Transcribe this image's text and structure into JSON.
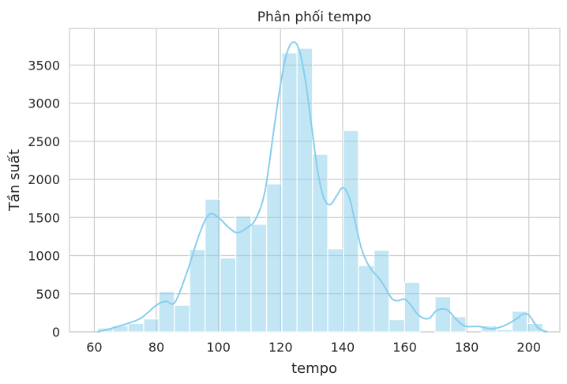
{
  "chart_data": {
    "type": "bar",
    "title": "Phân phối tempo",
    "xlabel": "tempo",
    "ylabel": "Tần suất",
    "xlim": [
      52,
      210
    ],
    "ylim": [
      0,
      3980
    ],
    "xticks": [
      60,
      80,
      100,
      120,
      140,
      160,
      180,
      200
    ],
    "yticks": [
      0,
      500,
      1000,
      1500,
      2000,
      2500,
      3000,
      3500
    ],
    "grid": true,
    "bar_color": "#87ceeb",
    "kde_color": "#87ceeb",
    "bin_width": 4.94,
    "bins": [
      {
        "x": [
          61.1,
          66.0
        ],
        "count": 50
      },
      {
        "x": [
          66.0,
          70.9
        ],
        "count": 80
      },
      {
        "x": [
          70.9,
          75.9
        ],
        "count": 110
      },
      {
        "x": [
          75.9,
          80.8
        ],
        "count": 170
      },
      {
        "x": [
          80.8,
          85.8
        ],
        "count": 530
      },
      {
        "x": [
          85.8,
          90.7
        ],
        "count": 350
      },
      {
        "x": [
          90.7,
          95.7
        ],
        "count": 1080
      },
      {
        "x": [
          95.7,
          100.6
        ],
        "count": 1740
      },
      {
        "x": [
          100.6,
          105.6
        ],
        "count": 970
      },
      {
        "x": [
          105.6,
          110.5
        ],
        "count": 1520
      },
      {
        "x": [
          110.5,
          115.5
        ],
        "count": 1410
      },
      {
        "x": [
          115.5,
          120.4
        ],
        "count": 1940
      },
      {
        "x": [
          120.4,
          125.3
        ],
        "count": 3660
      },
      {
        "x": [
          125.3,
          130.3
        ],
        "count": 3720
      },
      {
        "x": [
          130.3,
          135.2
        ],
        "count": 2330
      },
      {
        "x": [
          135.2,
          140.2
        ],
        "count": 1090
      },
      {
        "x": [
          140.2,
          145.1
        ],
        "count": 2640
      },
      {
        "x": [
          145.1,
          150.1
        ],
        "count": 870
      },
      {
        "x": [
          150.1,
          155.0
        ],
        "count": 1070
      },
      {
        "x": [
          155.0,
          160.0
        ],
        "count": 160
      },
      {
        "x": [
          160.0,
          164.9
        ],
        "count": 650
      },
      {
        "x": [
          164.9,
          169.8
        ],
        "count": 0
      },
      {
        "x": [
          169.8,
          174.8
        ],
        "count": 460
      },
      {
        "x": [
          174.8,
          179.7
        ],
        "count": 200
      },
      {
        "x": [
          179.7,
          184.7
        ],
        "count": 0
      },
      {
        "x": [
          184.7,
          189.6
        ],
        "count": 80
      },
      {
        "x": [
          189.6,
          194.6
        ],
        "count": 30
      },
      {
        "x": [
          194.6,
          199.5
        ],
        "count": 270
      },
      {
        "x": [
          199.5,
          204.5
        ],
        "count": 110
      }
    ],
    "kde": {
      "x": [
        61,
        65,
        70,
        75,
        80,
        83,
        86,
        90,
        94,
        97,
        100,
        103,
        106,
        109,
        112,
        115,
        118,
        120,
        122,
        124,
        126,
        128,
        130,
        132,
        134,
        136,
        138,
        140,
        142,
        144,
        146,
        148,
        150,
        152,
        154,
        156,
        158,
        160,
        162,
        164,
        166,
        168,
        170,
        172,
        174,
        176,
        178,
        180,
        184,
        188,
        192,
        196,
        198,
        200,
        203,
        206
      ],
      "y": [
        0,
        40,
        100,
        180,
        350,
        400,
        390,
        800,
        1300,
        1540,
        1500,
        1380,
        1300,
        1360,
        1480,
        1850,
        2700,
        3250,
        3650,
        3800,
        3700,
        3300,
        2700,
        2100,
        1750,
        1670,
        1780,
        1890,
        1780,
        1450,
        1100,
        900,
        780,
        690,
        560,
        430,
        410,
        430,
        350,
        240,
        180,
        180,
        270,
        300,
        280,
        190,
        110,
        70,
        70,
        40,
        80,
        170,
        230,
        220,
        50,
        0
      ]
    }
  }
}
